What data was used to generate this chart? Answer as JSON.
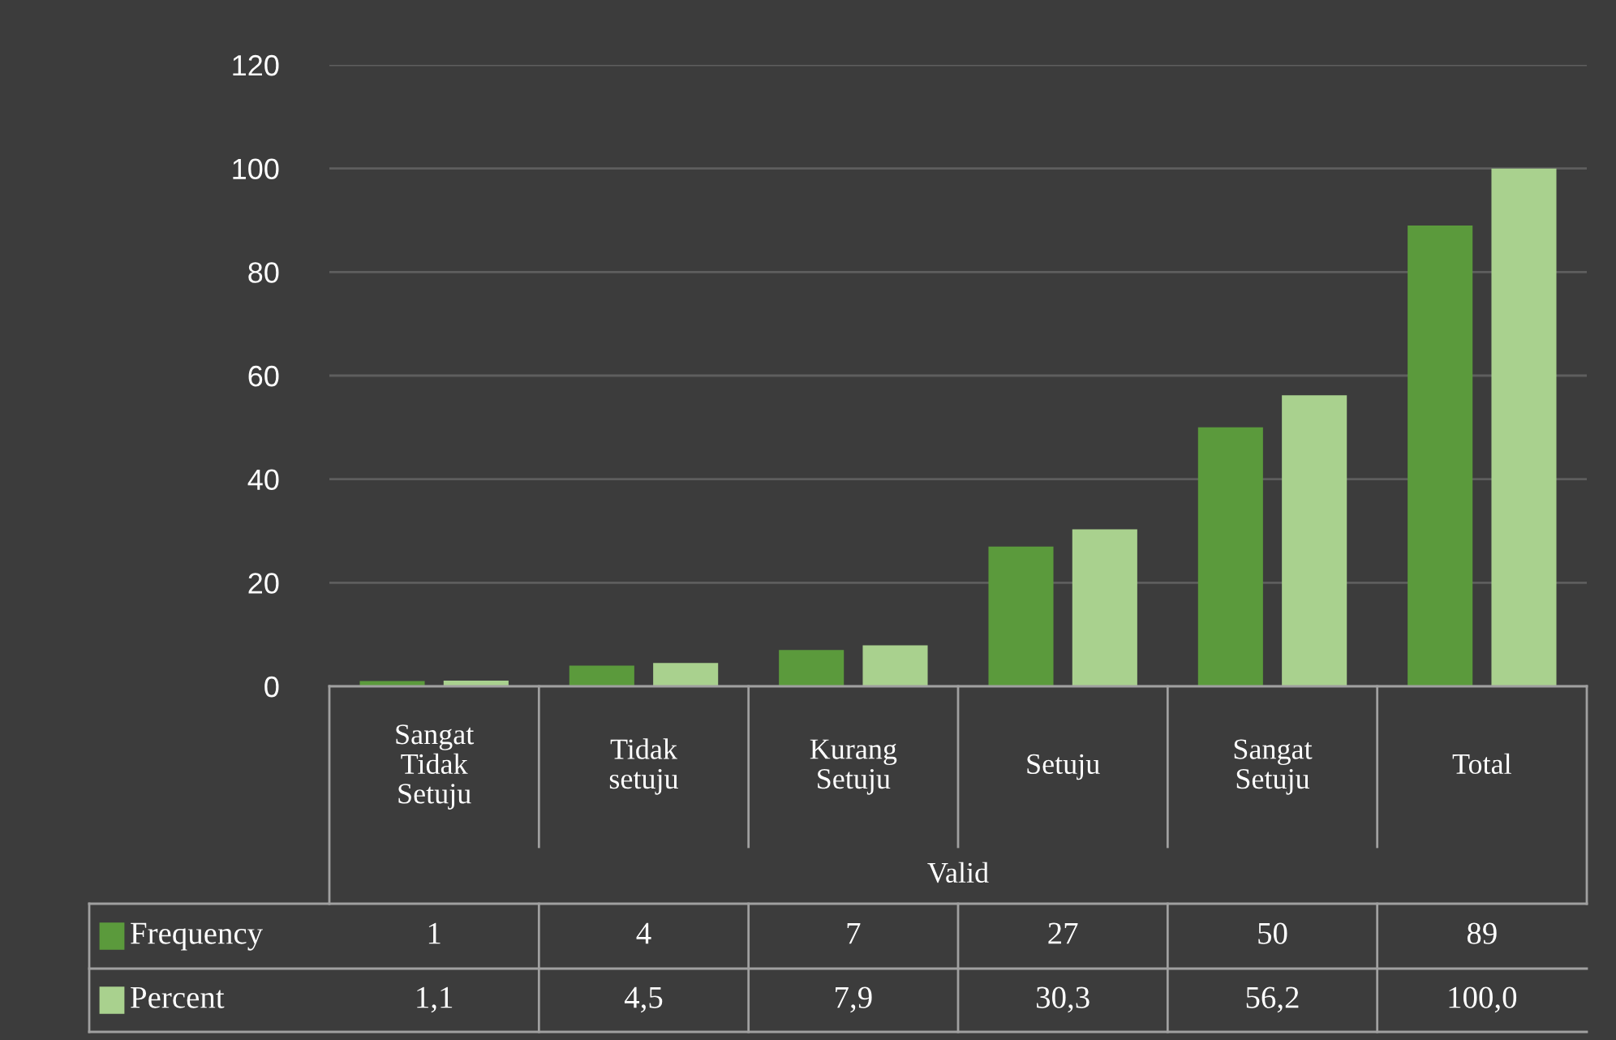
{
  "chart_data": {
    "type": "bar",
    "categories": [
      "Sangat Tidak Setuju",
      "Tidak setuju",
      "Kurang Setuju",
      "Setuju",
      "Sangat Setuju",
      "Total"
    ],
    "xlabel": "Valid",
    "series": [
      {
        "name": "Frequency",
        "color": "#5b9a3c",
        "values": [
          1,
          4,
          7,
          27,
          50,
          89
        ],
        "value_labels": [
          "1",
          "4",
          "7",
          "27",
          "50",
          "89"
        ]
      },
      {
        "name": "Percent",
        "color": "#a9d18e",
        "values": [
          1.1,
          4.5,
          7.9,
          30.3,
          56.2,
          100.0
        ],
        "value_labels": [
          "1,1",
          "4,5",
          "7,9",
          "30,3",
          "56,2",
          "100,0"
        ]
      }
    ],
    "ylim": [
      0,
      120
    ],
    "yticks": [
      0,
      20,
      40,
      60,
      80,
      100,
      120
    ],
    "grid": "y",
    "legend": "bottom left"
  }
}
